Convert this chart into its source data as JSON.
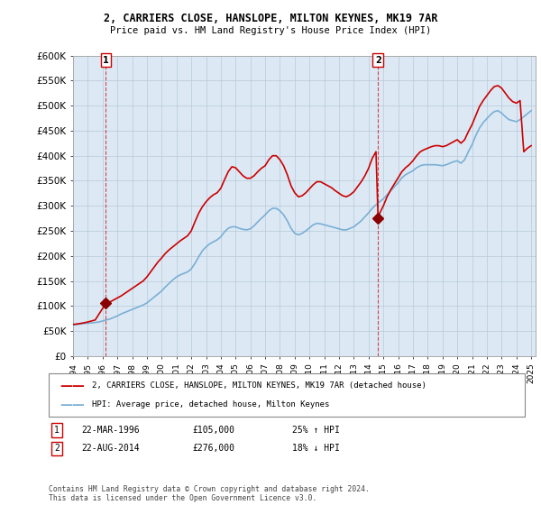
{
  "title1": "2, CARRIERS CLOSE, HANSLOPE, MILTON KEYNES, MK19 7AR",
  "title2": "Price paid vs. HM Land Registry's House Price Index (HPI)",
  "legend_line1": "2, CARRIERS CLOSE, HANSLOPE, MILTON KEYNES, MK19 7AR (detached house)",
  "legend_line2": "HPI: Average price, detached house, Milton Keynes",
  "footer": "Contains HM Land Registry data © Crown copyright and database right 2024.\nThis data is licensed under the Open Government Licence v3.0.",
  "sale1_year": 1996.22,
  "sale1_price": 105000,
  "sale2_year": 2014.64,
  "sale2_price": 276000,
  "price_line_color": "#cc0000",
  "hpi_line_color": "#7aafd4",
  "bg_color": "#dce9f5",
  "marker_color": "#8b0000",
  "dashed_line_color": "#cc0000",
  "ylim": [
    0,
    600000
  ],
  "yticks": [
    0,
    50000,
    100000,
    150000,
    200000,
    250000,
    300000,
    350000,
    400000,
    450000,
    500000,
    550000,
    600000
  ],
  "ytick_labels": [
    "£0",
    "£50K",
    "£100K",
    "£150K",
    "£200K",
    "£250K",
    "£300K",
    "£350K",
    "£400K",
    "£450K",
    "£500K",
    "£550K",
    "£600K"
  ],
  "xlim_start": 1994.0,
  "xlim_end": 2025.3,
  "hpi_data": [
    [
      1994.0,
      62000
    ],
    [
      1994.25,
      63000
    ],
    [
      1994.5,
      64000
    ],
    [
      1994.75,
      65000
    ],
    [
      1995.0,
      65500
    ],
    [
      1995.25,
      66000
    ],
    [
      1995.5,
      67000
    ],
    [
      1995.75,
      68000
    ],
    [
      1996.0,
      70000
    ],
    [
      1996.25,
      72000
    ],
    [
      1996.5,
      74000
    ],
    [
      1996.75,
      77000
    ],
    [
      1997.0,
      80000
    ],
    [
      1997.25,
      84000
    ],
    [
      1997.5,
      87000
    ],
    [
      1997.75,
      90000
    ],
    [
      1998.0,
      93000
    ],
    [
      1998.25,
      96000
    ],
    [
      1998.5,
      99000
    ],
    [
      1998.75,
      102000
    ],
    [
      1999.0,
      106000
    ],
    [
      1999.25,
      112000
    ],
    [
      1999.5,
      118000
    ],
    [
      1999.75,
      124000
    ],
    [
      2000.0,
      130000
    ],
    [
      2000.25,
      138000
    ],
    [
      2000.5,
      145000
    ],
    [
      2000.75,
      152000
    ],
    [
      2001.0,
      158000
    ],
    [
      2001.25,
      162000
    ],
    [
      2001.5,
      165000
    ],
    [
      2001.75,
      168000
    ],
    [
      2002.0,
      174000
    ],
    [
      2002.25,
      185000
    ],
    [
      2002.5,
      198000
    ],
    [
      2002.75,
      210000
    ],
    [
      2003.0,
      218000
    ],
    [
      2003.25,
      224000
    ],
    [
      2003.5,
      228000
    ],
    [
      2003.75,
      232000
    ],
    [
      2004.0,
      238000
    ],
    [
      2004.25,
      248000
    ],
    [
      2004.5,
      255000
    ],
    [
      2004.75,
      258000
    ],
    [
      2005.0,
      258000
    ],
    [
      2005.25,
      255000
    ],
    [
      2005.5,
      253000
    ],
    [
      2005.75,
      252000
    ],
    [
      2006.0,
      254000
    ],
    [
      2006.25,
      260000
    ],
    [
      2006.5,
      268000
    ],
    [
      2006.75,
      275000
    ],
    [
      2007.0,
      282000
    ],
    [
      2007.25,
      290000
    ],
    [
      2007.5,
      295000
    ],
    [
      2007.75,
      295000
    ],
    [
      2008.0,
      290000
    ],
    [
      2008.25,
      282000
    ],
    [
      2008.5,
      270000
    ],
    [
      2008.75,
      255000
    ],
    [
      2009.0,
      245000
    ],
    [
      2009.25,
      242000
    ],
    [
      2009.5,
      245000
    ],
    [
      2009.75,
      250000
    ],
    [
      2010.0,
      256000
    ],
    [
      2010.25,
      262000
    ],
    [
      2010.5,
      265000
    ],
    [
      2010.75,
      264000
    ],
    [
      2011.0,
      262000
    ],
    [
      2011.25,
      260000
    ],
    [
      2011.5,
      258000
    ],
    [
      2011.75,
      256000
    ],
    [
      2012.0,
      254000
    ],
    [
      2012.25,
      252000
    ],
    [
      2012.5,
      252000
    ],
    [
      2012.75,
      255000
    ],
    [
      2013.0,
      258000
    ],
    [
      2013.25,
      264000
    ],
    [
      2013.5,
      270000
    ],
    [
      2013.75,
      278000
    ],
    [
      2014.0,
      286000
    ],
    [
      2014.25,
      295000
    ],
    [
      2014.5,
      302000
    ],
    [
      2014.75,
      308000
    ],
    [
      2015.0,
      314000
    ],
    [
      2015.25,
      322000
    ],
    [
      2015.5,
      330000
    ],
    [
      2015.75,
      338000
    ],
    [
      2016.0,
      346000
    ],
    [
      2016.25,
      356000
    ],
    [
      2016.5,
      362000
    ],
    [
      2016.75,
      366000
    ],
    [
      2017.0,
      370000
    ],
    [
      2017.25,
      376000
    ],
    [
      2017.5,
      380000
    ],
    [
      2017.75,
      382000
    ],
    [
      2018.0,
      382000
    ],
    [
      2018.25,
      382000
    ],
    [
      2018.5,
      382000
    ],
    [
      2018.75,
      381000
    ],
    [
      2019.0,
      380000
    ],
    [
      2019.25,
      382000
    ],
    [
      2019.5,
      385000
    ],
    [
      2019.75,
      388000
    ],
    [
      2020.0,
      390000
    ],
    [
      2020.25,
      385000
    ],
    [
      2020.5,
      392000
    ],
    [
      2020.75,
      408000
    ],
    [
      2021.0,
      422000
    ],
    [
      2021.25,
      440000
    ],
    [
      2021.5,
      455000
    ],
    [
      2021.75,
      466000
    ],
    [
      2022.0,
      474000
    ],
    [
      2022.25,
      482000
    ],
    [
      2022.5,
      488000
    ],
    [
      2022.75,
      490000
    ],
    [
      2023.0,
      485000
    ],
    [
      2023.25,
      478000
    ],
    [
      2023.5,
      472000
    ],
    [
      2023.75,
      470000
    ],
    [
      2024.0,
      468000
    ],
    [
      2024.25,
      472000
    ],
    [
      2024.5,
      478000
    ],
    [
      2024.75,
      484000
    ],
    [
      2025.0,
      490000
    ]
  ],
  "price_data": [
    [
      1994.0,
      63000
    ],
    [
      1994.5,
      65000
    ],
    [
      1995.0,
      68000
    ],
    [
      1995.5,
      72000
    ],
    [
      1996.0,
      95000
    ],
    [
      1996.22,
      105000
    ],
    [
      1996.5,
      108000
    ],
    [
      1996.75,
      112000
    ],
    [
      1997.0,
      116000
    ],
    [
      1997.25,
      120000
    ],
    [
      1997.5,
      125000
    ],
    [
      1997.75,
      130000
    ],
    [
      1998.0,
      135000
    ],
    [
      1998.25,
      140000
    ],
    [
      1998.5,
      145000
    ],
    [
      1998.75,
      150000
    ],
    [
      1999.0,
      158000
    ],
    [
      1999.25,
      168000
    ],
    [
      1999.5,
      178000
    ],
    [
      1999.75,
      188000
    ],
    [
      2000.0,
      196000
    ],
    [
      2000.25,
      205000
    ],
    [
      2000.5,
      212000
    ],
    [
      2000.75,
      218000
    ],
    [
      2001.0,
      224000
    ],
    [
      2001.25,
      230000
    ],
    [
      2001.5,
      235000
    ],
    [
      2001.75,
      240000
    ],
    [
      2002.0,
      250000
    ],
    [
      2002.25,
      268000
    ],
    [
      2002.5,
      285000
    ],
    [
      2002.75,
      298000
    ],
    [
      2003.0,
      308000
    ],
    [
      2003.25,
      316000
    ],
    [
      2003.5,
      322000
    ],
    [
      2003.75,
      326000
    ],
    [
      2004.0,
      335000
    ],
    [
      2004.25,
      352000
    ],
    [
      2004.5,
      368000
    ],
    [
      2004.75,
      378000
    ],
    [
      2005.0,
      376000
    ],
    [
      2005.25,
      368000
    ],
    [
      2005.5,
      360000
    ],
    [
      2005.75,
      355000
    ],
    [
      2006.0,
      355000
    ],
    [
      2006.25,
      360000
    ],
    [
      2006.5,
      368000
    ],
    [
      2006.75,
      375000
    ],
    [
      2007.0,
      380000
    ],
    [
      2007.25,
      392000
    ],
    [
      2007.5,
      400000
    ],
    [
      2007.75,
      400000
    ],
    [
      2008.0,
      392000
    ],
    [
      2008.25,
      380000
    ],
    [
      2008.5,
      362000
    ],
    [
      2008.75,
      340000
    ],
    [
      2009.0,
      326000
    ],
    [
      2009.25,
      318000
    ],
    [
      2009.5,
      320000
    ],
    [
      2009.75,
      326000
    ],
    [
      2010.0,
      334000
    ],
    [
      2010.25,
      342000
    ],
    [
      2010.5,
      348000
    ],
    [
      2010.75,
      348000
    ],
    [
      2011.0,
      344000
    ],
    [
      2011.25,
      340000
    ],
    [
      2011.5,
      336000
    ],
    [
      2011.75,
      330000
    ],
    [
      2012.0,
      325000
    ],
    [
      2012.25,
      320000
    ],
    [
      2012.5,
      318000
    ],
    [
      2012.75,
      322000
    ],
    [
      2013.0,
      328000
    ],
    [
      2013.25,
      338000
    ],
    [
      2013.5,
      348000
    ],
    [
      2013.75,
      360000
    ],
    [
      2014.0,
      375000
    ],
    [
      2014.25,
      395000
    ],
    [
      2014.5,
      408000
    ],
    [
      2014.64,
      276000
    ],
    [
      2014.75,
      285000
    ],
    [
      2015.0,
      300000
    ],
    [
      2015.25,
      318000
    ],
    [
      2015.5,
      332000
    ],
    [
      2015.75,
      344000
    ],
    [
      2016.0,
      356000
    ],
    [
      2016.25,
      368000
    ],
    [
      2016.5,
      376000
    ],
    [
      2016.75,
      382000
    ],
    [
      2017.0,
      390000
    ],
    [
      2017.25,
      400000
    ],
    [
      2017.5,
      408000
    ],
    [
      2017.75,
      412000
    ],
    [
      2018.0,
      415000
    ],
    [
      2018.25,
      418000
    ],
    [
      2018.5,
      420000
    ],
    [
      2018.75,
      420000
    ],
    [
      2019.0,
      418000
    ],
    [
      2019.25,
      420000
    ],
    [
      2019.5,
      424000
    ],
    [
      2019.75,
      428000
    ],
    [
      2020.0,
      432000
    ],
    [
      2020.25,
      425000
    ],
    [
      2020.5,
      432000
    ],
    [
      2020.75,
      448000
    ],
    [
      2021.0,
      462000
    ],
    [
      2021.25,
      480000
    ],
    [
      2021.5,
      498000
    ],
    [
      2021.75,
      510000
    ],
    [
      2022.0,
      520000
    ],
    [
      2022.25,
      530000
    ],
    [
      2022.5,
      538000
    ],
    [
      2022.75,
      540000
    ],
    [
      2023.0,
      535000
    ],
    [
      2023.25,
      525000
    ],
    [
      2023.5,
      515000
    ],
    [
      2023.75,
      508000
    ],
    [
      2024.0,
      505000
    ],
    [
      2024.25,
      510000
    ],
    [
      2024.5,
      408000
    ],
    [
      2024.75,
      415000
    ],
    [
      2025.0,
      420000
    ]
  ]
}
